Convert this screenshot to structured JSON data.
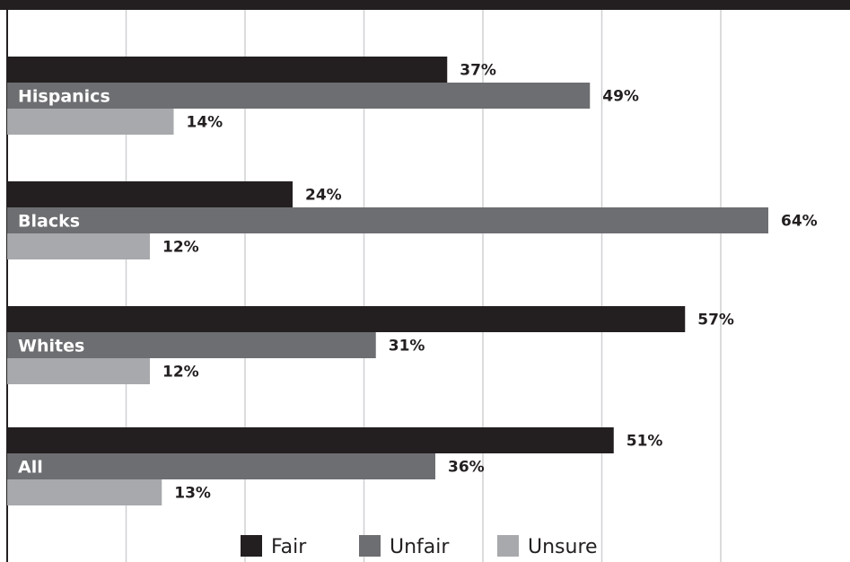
{
  "chart_data": {
    "type": "bar",
    "orientation": "horizontal",
    "categories": [
      "Hispanics",
      "Blacks",
      "Whites",
      "All"
    ],
    "series": [
      {
        "name": "Fair",
        "color": "#231f20",
        "values": [
          37,
          24,
          57,
          51
        ],
        "labels": [
          "37%",
          "24%",
          "57%",
          "51%"
        ]
      },
      {
        "name": "Unfair",
        "color": "#6d6e71",
        "values": [
          49,
          64,
          31,
          36
        ],
        "labels": [
          "49%",
          "64%",
          "31%",
          "36%"
        ]
      },
      {
        "name": "Unsure",
        "color": "#a7a9ac",
        "values": [
          14,
          12,
          12,
          13
        ],
        "labels": [
          "14%",
          "12%",
          "12%",
          "13%"
        ]
      }
    ],
    "xlim": [
      0,
      70
    ],
    "grid": true,
    "legend_position": "bottom"
  }
}
